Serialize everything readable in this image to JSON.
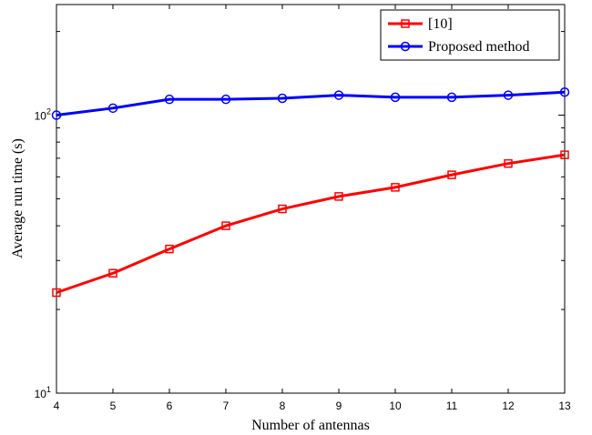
{
  "chart_data": {
    "type": "line",
    "title": "",
    "xlabel": "Number of antennas",
    "ylabel": "Average run time (s)",
    "x": [
      4,
      5,
      6,
      7,
      8,
      9,
      10,
      11,
      12,
      13
    ],
    "xlim": [
      4,
      13
    ],
    "ylim": [
      10,
      250
    ],
    "yscale": "log",
    "grid": false,
    "legend_position": "top-right",
    "x_ticks": [
      "4",
      "5",
      "6",
      "7",
      "8",
      "9",
      "10",
      "11",
      "12",
      "13"
    ],
    "y_ticks": [
      {
        "value": 10,
        "base": "10",
        "exp": "1"
      },
      {
        "value": 100,
        "base": "10",
        "exp": "2"
      }
    ],
    "series": [
      {
        "name": "[10]",
        "color": "#ff0000",
        "marker": "square",
        "values": [
          23,
          27,
          33,
          40,
          46,
          51,
          55,
          61,
          67,
          72
        ]
      },
      {
        "name": "Proposed method",
        "color": "#0000ff",
        "marker": "circle",
        "values": [
          100,
          106,
          114,
          114,
          115,
          118,
          116,
          116,
          118,
          121
        ]
      }
    ]
  }
}
